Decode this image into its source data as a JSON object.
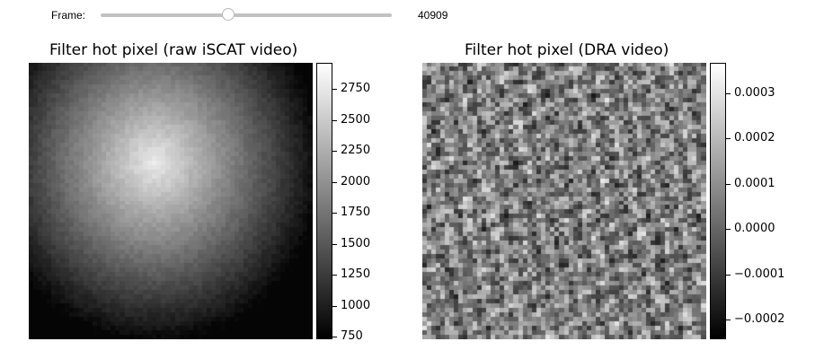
{
  "slider": {
    "label": "Frame:",
    "value": "40909",
    "fill_fraction": 0.44
  },
  "panels": [
    {
      "title": "Filter hot pixel (raw iSCAT video)",
      "colorbar": {
        "ticks": [
          "2750",
          "2500",
          "2250",
          "2000",
          "1750",
          "1500",
          "1250",
          "1000",
          "750"
        ],
        "min": 730,
        "max": 2960,
        "tick_values": [
          2750,
          2500,
          2250,
          2000,
          1750,
          1500,
          1250,
          1000,
          750
        ]
      },
      "image_kind": "smooth-bright-center"
    },
    {
      "title": "Filter hot pixel (DRA video)",
      "colorbar": {
        "ticks": [
          "0.0003",
          "0.0002",
          "0.0001",
          "0.0000",
          "−0.0001",
          "−0.0002"
        ],
        "min": -0.000243,
        "max": 0.000367,
        "tick_values": [
          0.0003,
          0.0002,
          0.0001,
          0.0,
          -0.0001,
          -0.0002
        ]
      },
      "image_kind": "noisy-speckle"
    }
  ]
}
